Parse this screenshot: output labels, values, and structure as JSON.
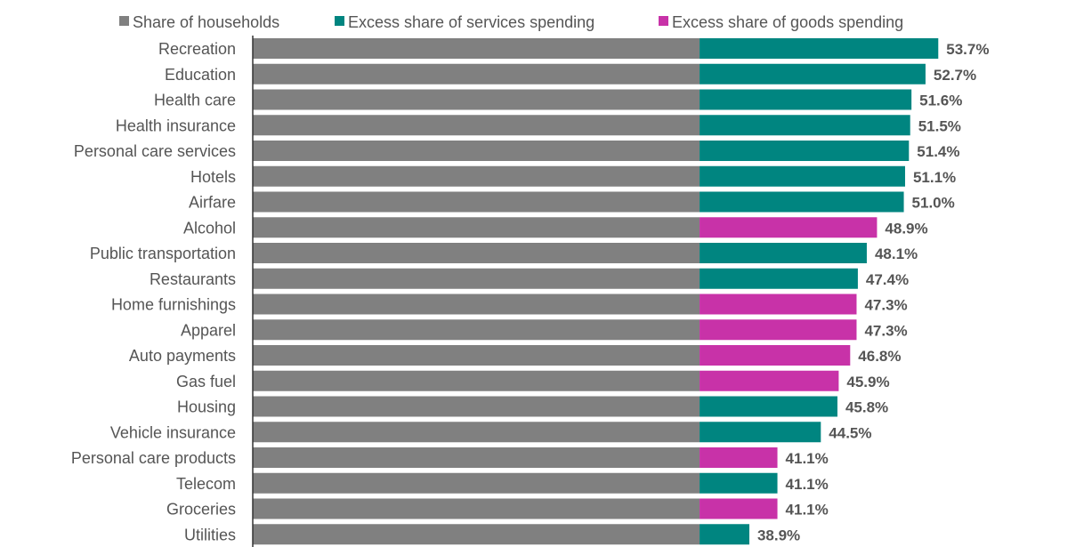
{
  "colors": {
    "share": "#808080",
    "services": "#008580",
    "goods": "#c832a8",
    "text": "#555555",
    "axis": "#333333"
  },
  "legend": [
    {
      "key": "share",
      "label": "Share of households"
    },
    {
      "key": "services",
      "label": "Excess share of services spending"
    },
    {
      "key": "goods",
      "label": "Excess share of goods spending"
    }
  ],
  "chart_data": {
    "type": "bar",
    "orientation": "horizontal",
    "stacked": true,
    "title": "",
    "xlabel": "",
    "ylabel": "",
    "xlim": [
      0,
      56
    ],
    "grid": false,
    "legend_position": "top",
    "share_of_households": 35,
    "categories": [
      "Recreation",
      "Education",
      "Health care",
      "Health insurance",
      "Personal care services",
      "Hotels",
      "Airfare",
      "Alcohol",
      "Public transportation",
      "Restaurants",
      "Home furnishings",
      "Apparel",
      "Auto payments",
      "Gas fuel",
      "Housing",
      "Vehicle insurance",
      "Personal care products",
      "Telecom",
      "Groceries",
      "Utilities"
    ],
    "values": [
      53.7,
      52.7,
      51.6,
      51.5,
      51.4,
      51.1,
      51.0,
      48.9,
      48.1,
      47.4,
      47.3,
      47.3,
      46.8,
      45.9,
      45.8,
      44.5,
      41.1,
      41.1,
      41.1,
      38.9
    ],
    "value_labels": [
      "53.7%",
      "52.7%",
      "51.6%",
      "51.5%",
      "51.4%",
      "51.1%",
      "51.0%",
      "48.9%",
      "48.1%",
      "47.4%",
      "47.3%",
      "47.3%",
      "46.8%",
      "45.9%",
      "45.8%",
      "44.5%",
      "41.1%",
      "41.1%",
      "41.1%",
      "38.9%"
    ],
    "type_of_spending": [
      "services",
      "services",
      "services",
      "services",
      "services",
      "services",
      "services",
      "goods",
      "services",
      "services",
      "goods",
      "goods",
      "goods",
      "goods",
      "services",
      "services",
      "goods",
      "services",
      "goods",
      "services"
    ]
  }
}
